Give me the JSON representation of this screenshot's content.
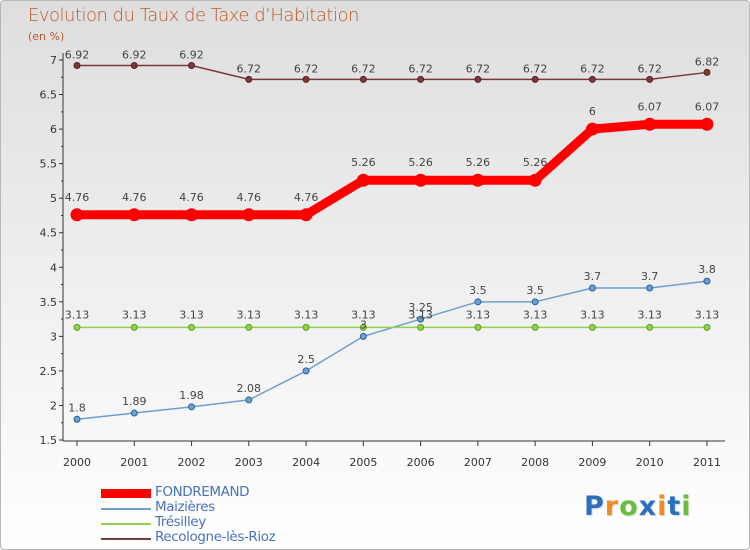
{
  "chart_data": {
    "type": "line",
    "title": "Evolution du Taux de Taxe d’Habitation",
    "subtitle": "(en %)",
    "xlabel": "",
    "ylabel": "",
    "ylim": [
      1.5,
      7
    ],
    "yticks": [
      "1.5",
      "2",
      "2.5",
      "3",
      "3.5",
      "4",
      "4.5",
      "5",
      "5.5",
      "6",
      "6.5",
      "7"
    ],
    "categories": [
      "2000",
      "2001",
      "2002",
      "2003",
      "2004",
      "2005",
      "2006",
      "2007",
      "2008",
      "2009",
      "2010",
      "2011"
    ],
    "grid": false,
    "legend_position": "bottom-left",
    "series": [
      {
        "name": "Recologne-lès-Rioz",
        "color": "#7a3a3a",
        "values": [
          6.92,
          6.92,
          6.92,
          6.72,
          6.72,
          6.72,
          6.72,
          6.72,
          6.72,
          6.72,
          6.72,
          6.82
        ],
        "labels": [
          "6.92",
          "6.92",
          "6.92",
          "6.72",
          "6.72",
          "6.72",
          "6.72",
          "6.72",
          "6.72",
          "6.72",
          "6.72",
          "6.82"
        ]
      },
      {
        "name": "FONDREMAND",
        "color": "#ff0000",
        "values": [
          4.76,
          4.76,
          4.76,
          4.76,
          4.76,
          5.26,
          5.26,
          5.26,
          5.26,
          6,
          6.07,
          6.07
        ],
        "labels": [
          "4.76",
          "4.76",
          "4.76",
          "4.76",
          "4.76",
          "5.26",
          "5.26",
          "5.26",
          "5.26",
          "6",
          "6.07",
          "6.07"
        ]
      },
      {
        "name": "Trésilley",
        "color": "#92d050",
        "values": [
          3.13,
          3.13,
          3.13,
          3.13,
          3.13,
          3.13,
          3.13,
          3.13,
          3.13,
          3.13,
          3.13,
          3.13
        ],
        "labels": [
          "3.13",
          "3.13",
          "3.13",
          "3.13",
          "3.13",
          "3.13",
          "3.13",
          "3.13",
          "3.13",
          "3.13",
          "3.13",
          "3.13"
        ]
      },
      {
        "name": "Maizières",
        "color": "#6d9fd0",
        "values": [
          1.8,
          1.89,
          1.98,
          2.08,
          2.5,
          3,
          3.25,
          3.5,
          3.5,
          3.7,
          3.7,
          3.8
        ],
        "labels": [
          "1.8",
          "1.89",
          "1.98",
          "2.08",
          "2.5",
          "3",
          "3.25",
          "3.5",
          "3.5",
          "3.7",
          "3.7",
          "3.8"
        ]
      }
    ],
    "legend": [
      "FONDREMAND",
      "Maizières",
      "Trésilley",
      "Recologne-lès-Rioz"
    ]
  },
  "logo_text": {
    "parts": [
      "P",
      "r",
      "o",
      "x",
      "i",
      "t",
      "i"
    ]
  }
}
